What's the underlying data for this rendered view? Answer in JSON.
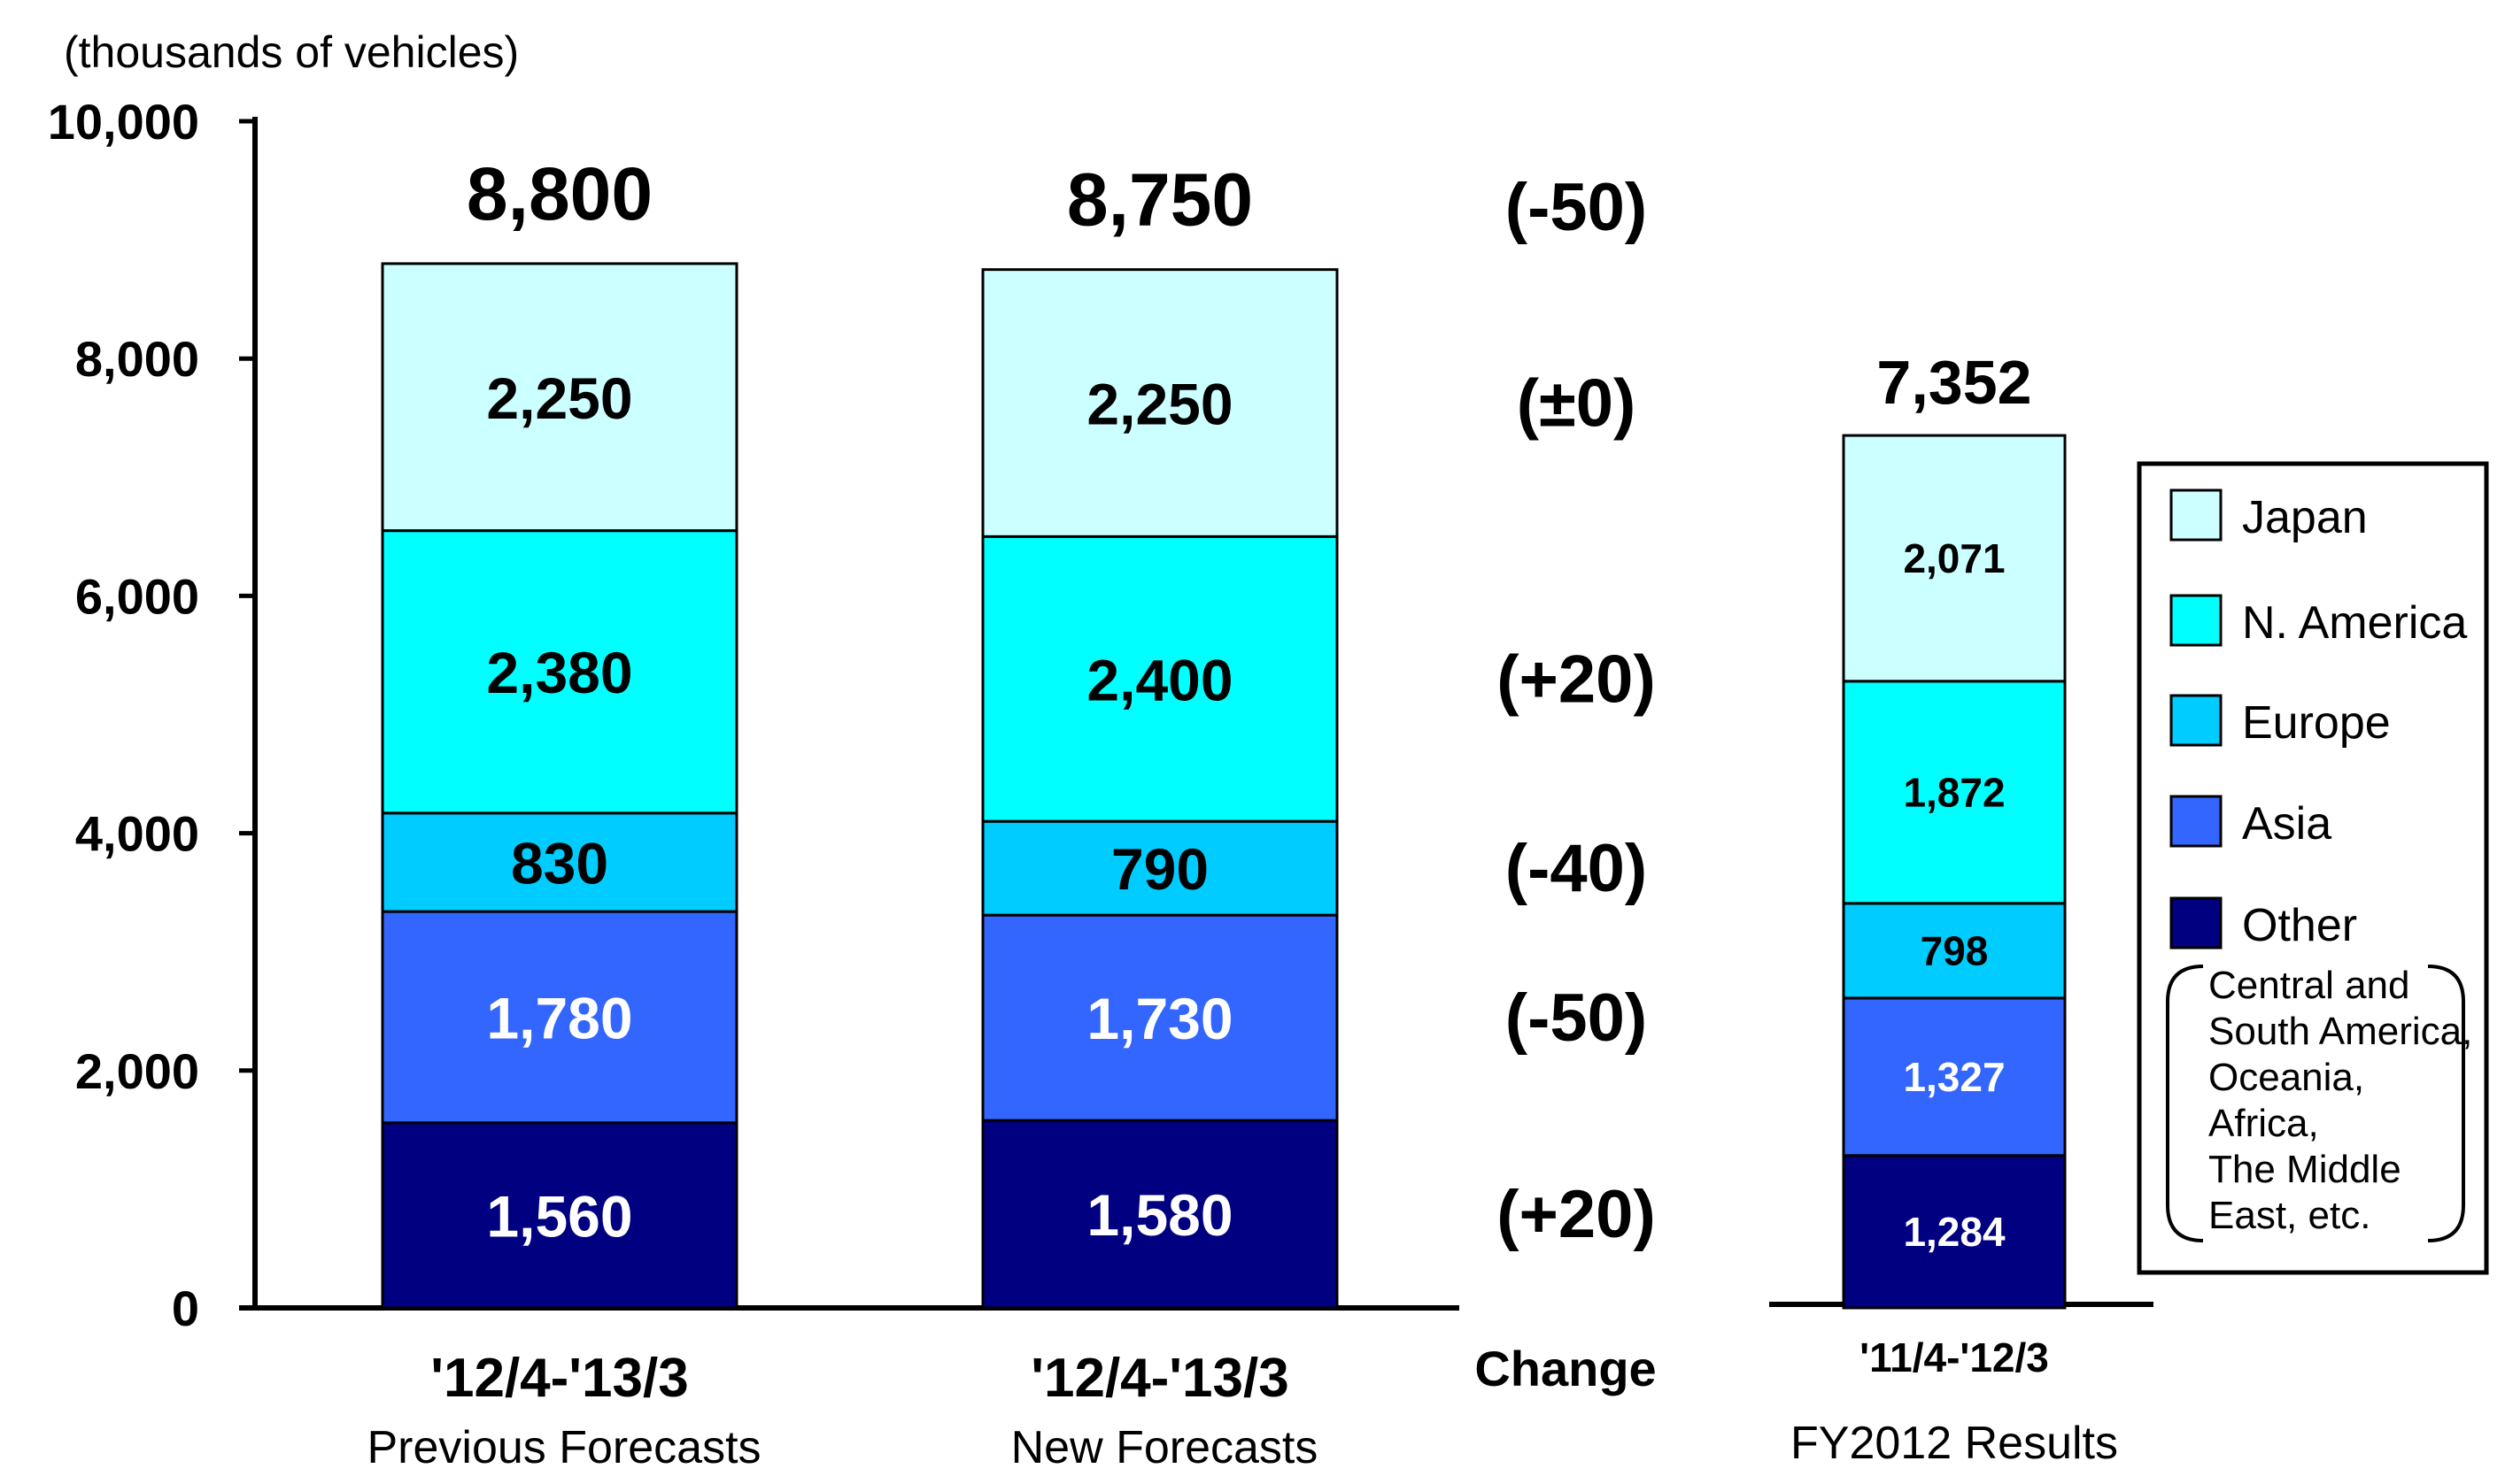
{
  "unit_label": "(thousands of vehicles)",
  "change_header": "Change",
  "colors": {
    "Japan": "#ccffff",
    "N. America": "#00ffff",
    "Europe": "#00ccff",
    "Asia": "#3366ff",
    "Other": "#000080"
  },
  "chart_data": {
    "type": "bar",
    "stacked": true,
    "ylim": [
      0,
      10000
    ],
    "yticks": [
      "0",
      "2,000",
      "4,000",
      "6,000",
      "8,000",
      "10,000"
    ],
    "categories": [
      {
        "top": "'12/4-'13/3",
        "bottom": "Previous Forecasts"
      },
      {
        "top": "'12/4-'13/3",
        "bottom": "New Forecasts"
      },
      {
        "top": "'11/4-'12/3",
        "bottom": "FY2012 Results"
      }
    ],
    "totals": [
      "8,800",
      "8,750",
      "7,352"
    ],
    "series": [
      {
        "name": "Other",
        "values": [
          1560,
          1580,
          1284
        ],
        "labels": [
          "1,560",
          "1,580",
          "1,284"
        ]
      },
      {
        "name": "Asia",
        "values": [
          1780,
          1730,
          1327
        ],
        "labels": [
          "1,780",
          "1,730",
          "1,327"
        ]
      },
      {
        "name": "Europe",
        "values": [
          830,
          790,
          798
        ],
        "labels": [
          "830",
          "790",
          "798"
        ]
      },
      {
        "name": "N. America",
        "values": [
          2380,
          2400,
          1872
        ],
        "labels": [
          "2,380",
          "2,400",
          "1,872"
        ]
      },
      {
        "name": "Japan",
        "values": [
          2250,
          2250,
          2071
        ],
        "labels": [
          "2,250",
          "2,250",
          "2,071"
        ]
      }
    ],
    "changes": {
      "total": "(-50)",
      "Japan": "(±0)",
      "N. America": "(+20)",
      "Europe": "(-40)",
      "Asia": "(-50)",
      "Other": "(+20)"
    },
    "legend": {
      "position": "right",
      "order": [
        "Japan",
        "N. America",
        "Europe",
        "Asia",
        "Other"
      ],
      "other_note": [
        "Central and",
        "South America,",
        "Oceania,",
        "Africa,",
        "The Middle",
        "East, etc."
      ]
    }
  }
}
